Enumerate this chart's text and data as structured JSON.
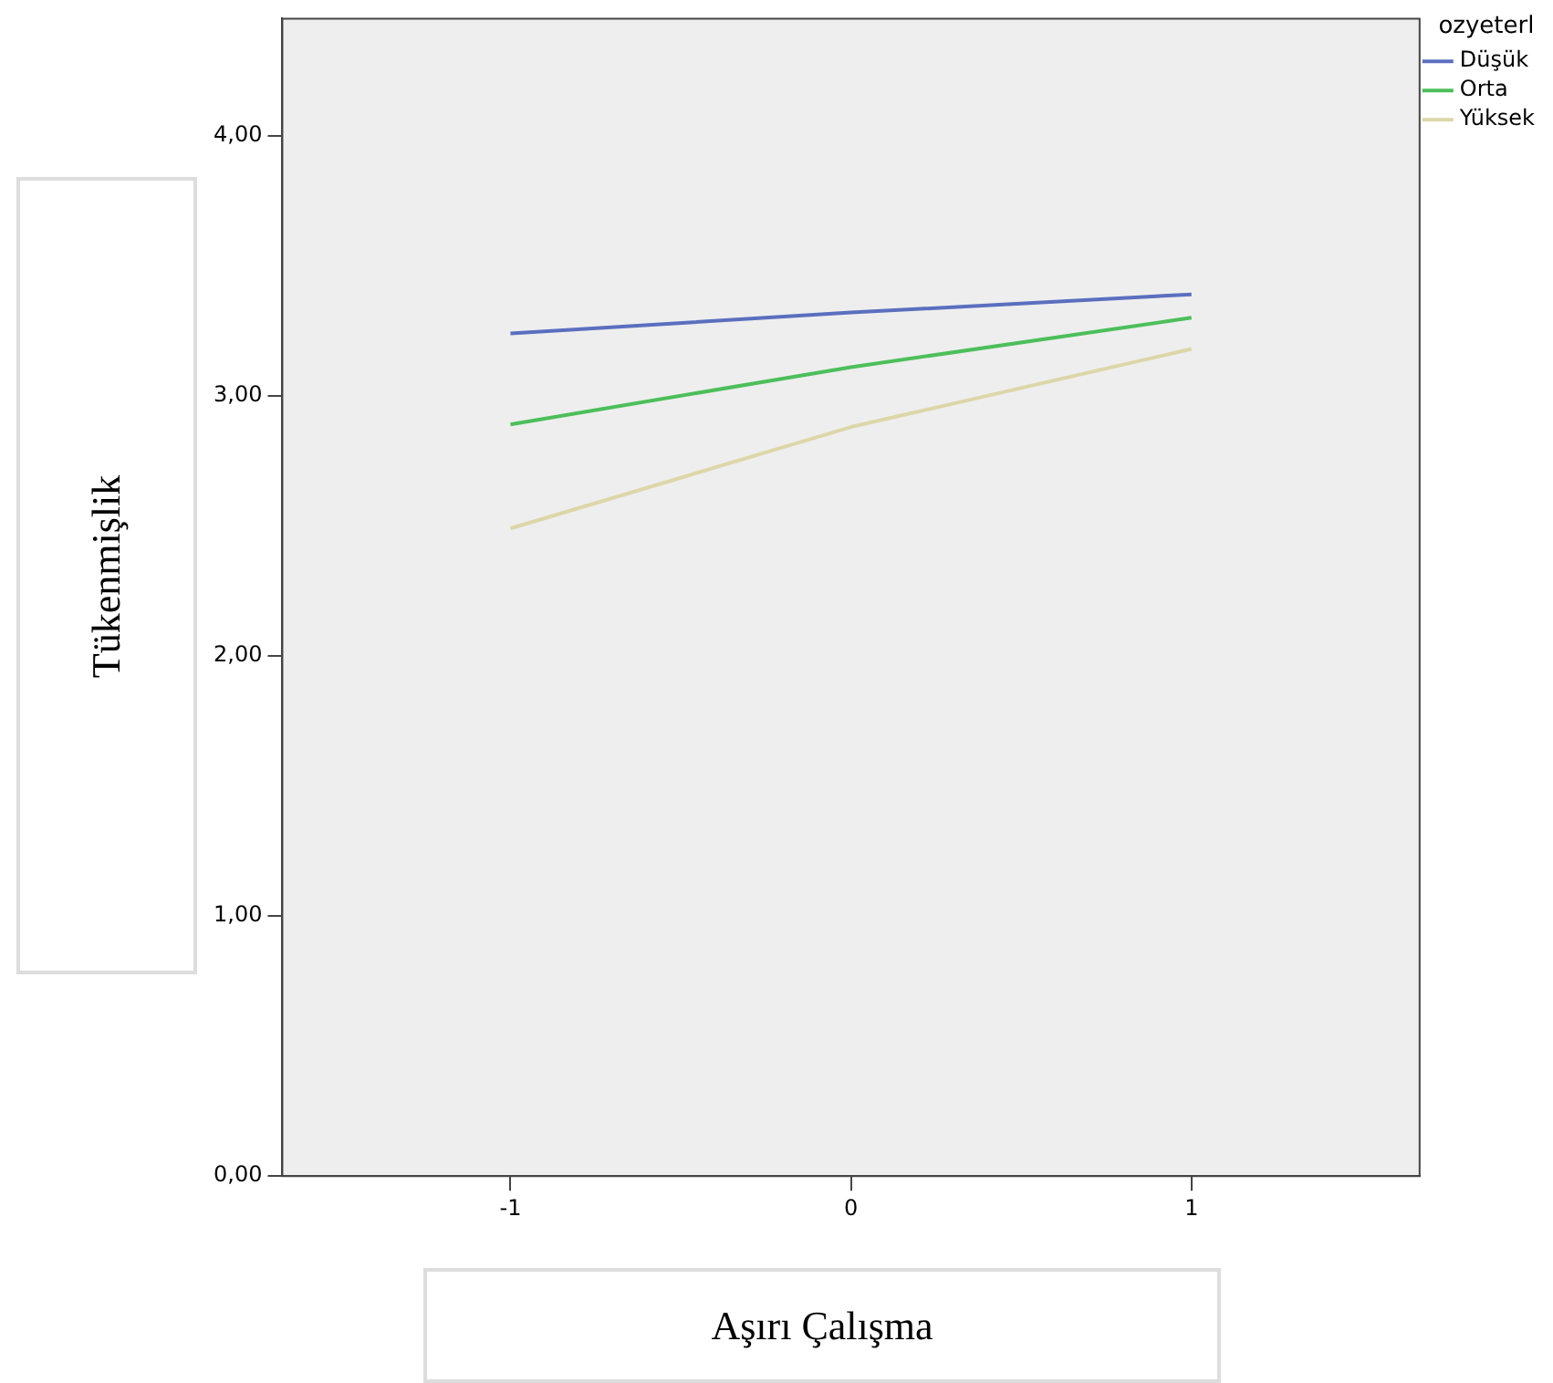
{
  "chart_data": {
    "type": "line",
    "xlabel": "Aşırı Çalışma",
    "ylabel": "Tükenmişlik",
    "legend_title": "ozyeterl",
    "legend": "top right",
    "grid": false,
    "marker": "none",
    "line_style": "solid",
    "x": [
      -1,
      0,
      1
    ],
    "series": [
      {
        "name": "Düşük",
        "color": "#5b6fbf",
        "values": [
          3.24,
          3.32,
          3.39
        ]
      },
      {
        "name": "Orta",
        "color": "#4cbf5a",
        "values": [
          2.89,
          3.11,
          3.3
        ]
      },
      {
        "name": "Yüksek",
        "color": "#ddd6a8",
        "values": [
          2.49,
          2.88,
          3.18
        ]
      }
    ],
    "xlim": [
      -1.67,
      1.67
    ],
    "xticks": [
      -1,
      0,
      1
    ],
    "ylim": [
      0,
      4.45
    ],
    "yticks": [
      {
        "value": 0,
        "label": "0,00"
      },
      {
        "value": 1,
        "label": "1,00"
      },
      {
        "value": 2,
        "label": "2,00"
      },
      {
        "value": 3,
        "label": "3,00"
      },
      {
        "value": 4,
        "label": "4,00"
      }
    ]
  }
}
